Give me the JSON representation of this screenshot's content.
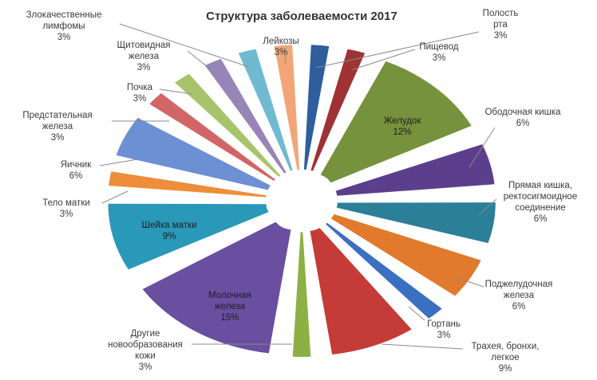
{
  "chart_data": {
    "type": "pie",
    "title": "Структура заболеваемости 2017",
    "slices": [
      {
        "label": [
          "Полость",
          "рта"
        ],
        "value": 3,
        "pct": "3%",
        "color": "#2e5e9c"
      },
      {
        "label": [
          "Пищевод"
        ],
        "value": 3,
        "pct": "3%",
        "color": "#9e3234"
      },
      {
        "label": [
          "Желудок"
        ],
        "value": 12,
        "pct": "12%",
        "color": "#76923c"
      },
      {
        "label": [
          "Ободочная кишка"
        ],
        "value": 6,
        "pct": "6%",
        "color": "#5b3f8c"
      },
      {
        "label": [
          "Прямая кишка,",
          "ректосигмоидное",
          "соединение"
        ],
        "value": 6,
        "pct": "6%",
        "color": "#2b7f98"
      },
      {
        "label": [
          "Поджелудочная",
          "железа"
        ],
        "value": 6,
        "pct": "6%",
        "color": "#e17a2c"
      },
      {
        "label": [
          "Гортань"
        ],
        "value": 3,
        "pct": "3%",
        "color": "#3a6fc2"
      },
      {
        "label": [
          "Трахея, бронхи,",
          "легкое"
        ],
        "value": 9,
        "pct": "9%",
        "color": "#c43b37"
      },
      {
        "label": [
          "Другие",
          "новообразования",
          "кожи"
        ],
        "value": 3,
        "pct": "3%",
        "color": "#8db045"
      },
      {
        "label": [
          "Молочная",
          "железа"
        ],
        "value": 15,
        "pct": "15%",
        "color": "#6a4ea0"
      },
      {
        "label": [
          "Шейка матки"
        ],
        "value": 9,
        "pct": "9%",
        "color": "#2a98b8"
      },
      {
        "label": [
          "Тело матки"
        ],
        "value": 3,
        "pct": "3%",
        "color": "#ee8d3a"
      },
      {
        "label": [
          "Яичник"
        ],
        "value": 6,
        "pct": "6%",
        "color": "#6d8fd3"
      },
      {
        "label": [
          "Предстательная",
          "железа"
        ],
        "value": 3,
        "pct": "3%",
        "color": "#d26565"
      },
      {
        "label": [
          "Почка"
        ],
        "value": 3,
        "pct": "3%",
        "color": "#a8c46b"
      },
      {
        "label": [
          "Щитовидная",
          "железа"
        ],
        "value": 3,
        "pct": "3%",
        "color": "#9785b8"
      },
      {
        "label": [
          "Злокачественные",
          "лимфомы"
        ],
        "value": 3,
        "pct": "3%",
        "color": "#6fbad1"
      },
      {
        "label": [
          "Лейкозы"
        ],
        "value": 3,
        "pct": "3%",
        "color": "#f2a677"
      }
    ]
  }
}
